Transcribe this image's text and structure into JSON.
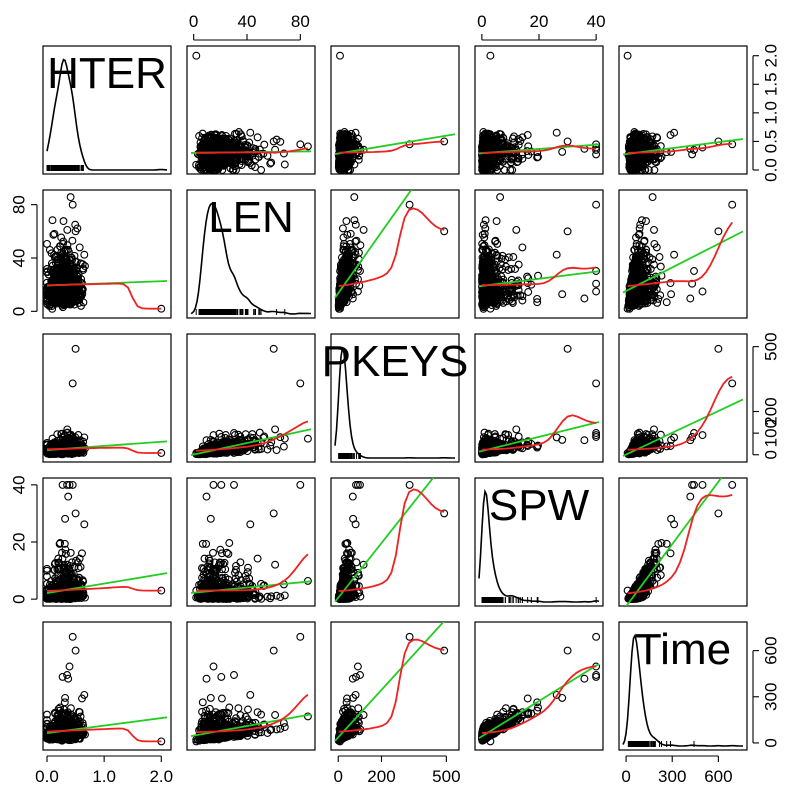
{
  "chart_data": {
    "type": "scatter",
    "variables": [
      "HTER",
      "LEN",
      "PKEYS",
      "SPW",
      "Time"
    ],
    "ranges": {
      "HTER": [
        0,
        2.1
      ],
      "LEN": [
        -2,
        88
      ],
      "PKEYS": [
        -15,
        540
      ],
      "SPW": [
        -1,
        41
      ],
      "Time": [
        -20,
        760
      ]
    },
    "ticks": {
      "HTER": [
        "0.0",
        "0.5",
        "1.0",
        "1.5",
        "2.0"
      ],
      "LEN": [
        "0",
        "20",
        "40",
        "60",
        "80"
      ],
      "PKEYS": [
        "0",
        "100",
        "200",
        "300",
        "400",
        "500"
      ],
      "SPW": [
        "0",
        "10",
        "20",
        "30",
        "40"
      ],
      "Time": [
        "0",
        "100",
        "200",
        "300",
        "400",
        "500",
        "600"
      ]
    },
    "tick_labels": {
      "bottom": [
        {
          "var": "HTER",
          "labels": [
            "0.0",
            "1.0",
            "2.0"
          ]
        },
        {
          "var": "PKEYS",
          "labels": [
            "0",
            "200",
            "500"
          ]
        },
        {
          "var": "Time",
          "labels": [
            "0",
            "300",
            "600"
          ]
        }
      ],
      "top": [
        {
          "var": "LEN",
          "labels": [
            "0",
            "40",
            "80"
          ]
        },
        {
          "var": "SPW",
          "labels": [
            "0",
            "20",
            "40"
          ]
        }
      ],
      "left": [
        {
          "var": "LEN",
          "labels": [
            "0",
            "40",
            "80"
          ]
        },
        {
          "var": "SPW",
          "labels": [
            "0",
            "20",
            "40"
          ]
        }
      ],
      "right": [
        {
          "var": "HTER",
          "labels": [
            "0.0",
            "0.5",
            "1.0",
            "1.5",
            "2.0"
          ]
        },
        {
          "var": "PKEYS",
          "labels": [
            "0",
            "100",
            "200",
            "500"
          ]
        },
        {
          "var": "Time",
          "labels": [
            "0",
            "300",
            "600"
          ]
        }
      ]
    },
    "distributions": {
      "HTER": {
        "median": 0.28,
        "iqr": [
          0.17,
          0.42
        ],
        "max": 2.0
      },
      "LEN": {
        "median": 18,
        "iqr": [
          11,
          28
        ],
        "max": 86
      },
      "PKEYS": {
        "median": 22,
        "iqr": [
          10,
          45
        ],
        "max": 510
      },
      "SPW": {
        "median": 1.5,
        "iqr": [
          0.6,
          3.5
        ],
        "max": 40
      },
      "Time": {
        "median": 55,
        "iqr": [
          30,
          100
        ],
        "max": 690
      }
    },
    "linear_fit_color": "#22cc22",
    "smooth_fit_color": "#ee2222",
    "point_color": "#000000",
    "diagonal": "density",
    "grid": false
  }
}
